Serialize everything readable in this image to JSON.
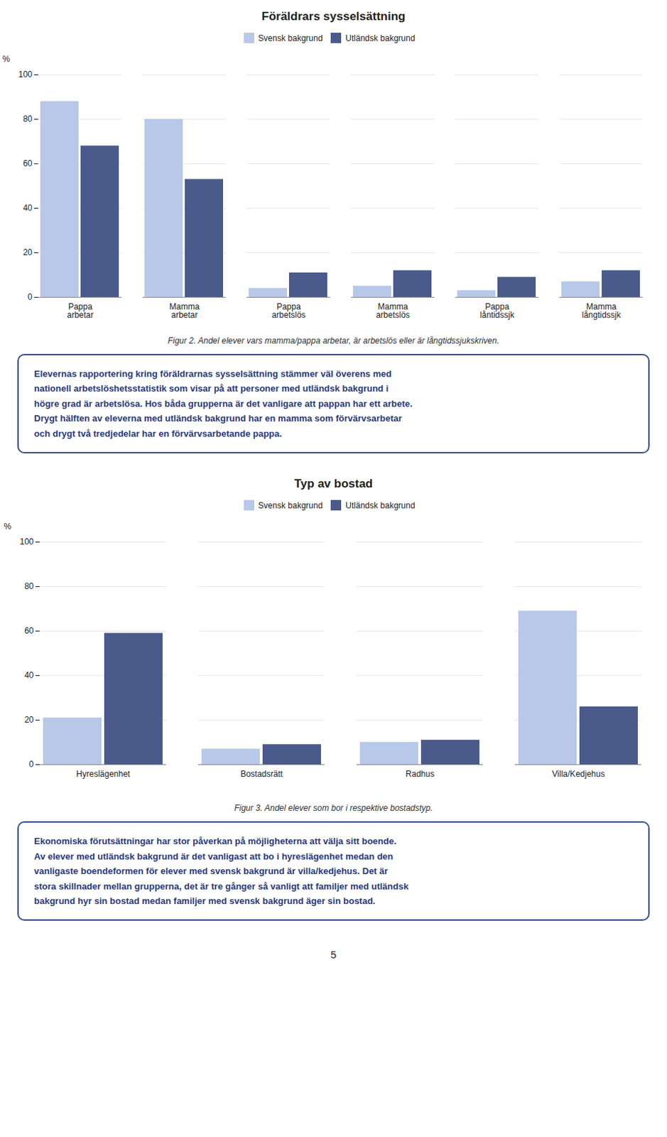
{
  "chart_data": [
    {
      "type": "bar",
      "title": "Föräldrars sysselsättning",
      "categories": [
        "Pappa\narbetar",
        "Mamma\narbetar",
        "Pappa\narbetslös",
        "Mamma\narbetslös",
        "Pappa\nlåntidssjk",
        "Mamma\nlångtidssjk"
      ],
      "series": [
        {
          "name": "Svensk bakgrund",
          "color": "#b8c8e8",
          "values": [
            88,
            80,
            4,
            5,
            3,
            7
          ]
        },
        {
          "name": "Utländsk bakgrund",
          "color": "#4a5a8a",
          "values": [
            68,
            53,
            11,
            12,
            9,
            12
          ]
        }
      ],
      "ylabel": "%",
      "ylim": [
        0,
        100
      ],
      "yticks": [
        0,
        20,
        40,
        60,
        80,
        100
      ],
      "grid": true,
      "legend": "top",
      "caption": "Figur 2. Andel elever vars mamma/pappa arbetar, är arbetslös eller är långtidssjukskriven.",
      "annotations": [
        "Elevernas rapportering kring föräldrarnas sysselsättning stämmer väl överens med\nnationell arbetslöshetsstatistik som visar på att personer med utländsk bakgrund i\nhögre grad är arbetslösa. Hos båda grupperna är det vanligare att pappan har ett arbete.\nDrygt hälften av eleverna med utländsk bakgrund har en mamma som förvärvsarbetar\noch drygt två tredjedelar har en förvärvsarbetande pappa."
      ]
    },
    {
      "type": "bar",
      "title": "Typ av bostad",
      "categories": [
        "Hyreslägenhet",
        "Bostadsrätt",
        "Radhus",
        "Villa/Kedjehus"
      ],
      "series": [
        {
          "name": "Svensk bakgrund",
          "color": "#b8c8e8",
          "values": [
            21,
            7,
            10,
            69
          ]
        },
        {
          "name": "Utländsk bakgrund",
          "color": "#4a5a8a",
          "values": [
            59,
            9,
            11,
            26
          ]
        }
      ],
      "ylabel": "%",
      "ylim": [
        0,
        100
      ],
      "yticks": [
        0,
        20,
        40,
        60,
        80,
        100
      ],
      "grid": true,
      "legend": "top",
      "caption": "Figur 3. Andel elever som bor i respektive bostadstyp.",
      "annotations": [
        "Ekonomiska förutsättningar har stor påverkan på möjligheterna att välja sitt boende.\nAv elever med utländsk bakgrund är det vanligast att bo i hyreslägenhet medan den\nvanligaste boendeformen för elever med svensk bakgrund är villa/kedjehus. Det är\nstora skillnader mellan grupperna, det är tre gånger så vanligt att familjer med utländsk\nbakgrund hyr sin bostad medan familjer med svensk bakgrund äger sin bostad."
      ]
    }
  ],
  "page_number": "5"
}
